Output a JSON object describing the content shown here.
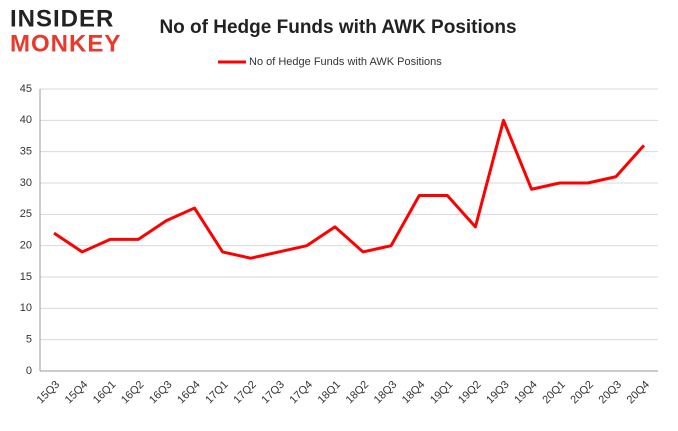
{
  "logo": {
    "line1": "INSIDER",
    "line2": "MONKEY"
  },
  "chart_data": {
    "type": "line",
    "title": "No of Hedge Funds with AWK Positions",
    "categories": [
      "15Q3",
      "15Q4",
      "16Q1",
      "16Q2",
      "16Q3",
      "16Q4",
      "17Q1",
      "17Q2",
      "17Q3",
      "17Q4",
      "18Q1",
      "18Q2",
      "18Q3",
      "18Q4",
      "19Q1",
      "19Q2",
      "19Q3",
      "19Q4",
      "20Q1",
      "20Q2",
      "20Q3",
      "20Q4"
    ],
    "series": [
      {
        "name": "No of Hedge Funds with AWK Positions",
        "color": "#ff0000",
        "values": [
          22,
          19,
          21,
          21,
          24,
          26,
          19,
          18,
          19,
          20,
          23,
          19,
          20,
          28,
          28,
          23,
          40,
          29,
          30,
          30,
          31,
          36
        ]
      }
    ],
    "ylim": [
      0,
      45
    ],
    "yticks": [
      0,
      5,
      10,
      15,
      20,
      25,
      30,
      35,
      40,
      45
    ],
    "grid": true,
    "legend": "top"
  }
}
